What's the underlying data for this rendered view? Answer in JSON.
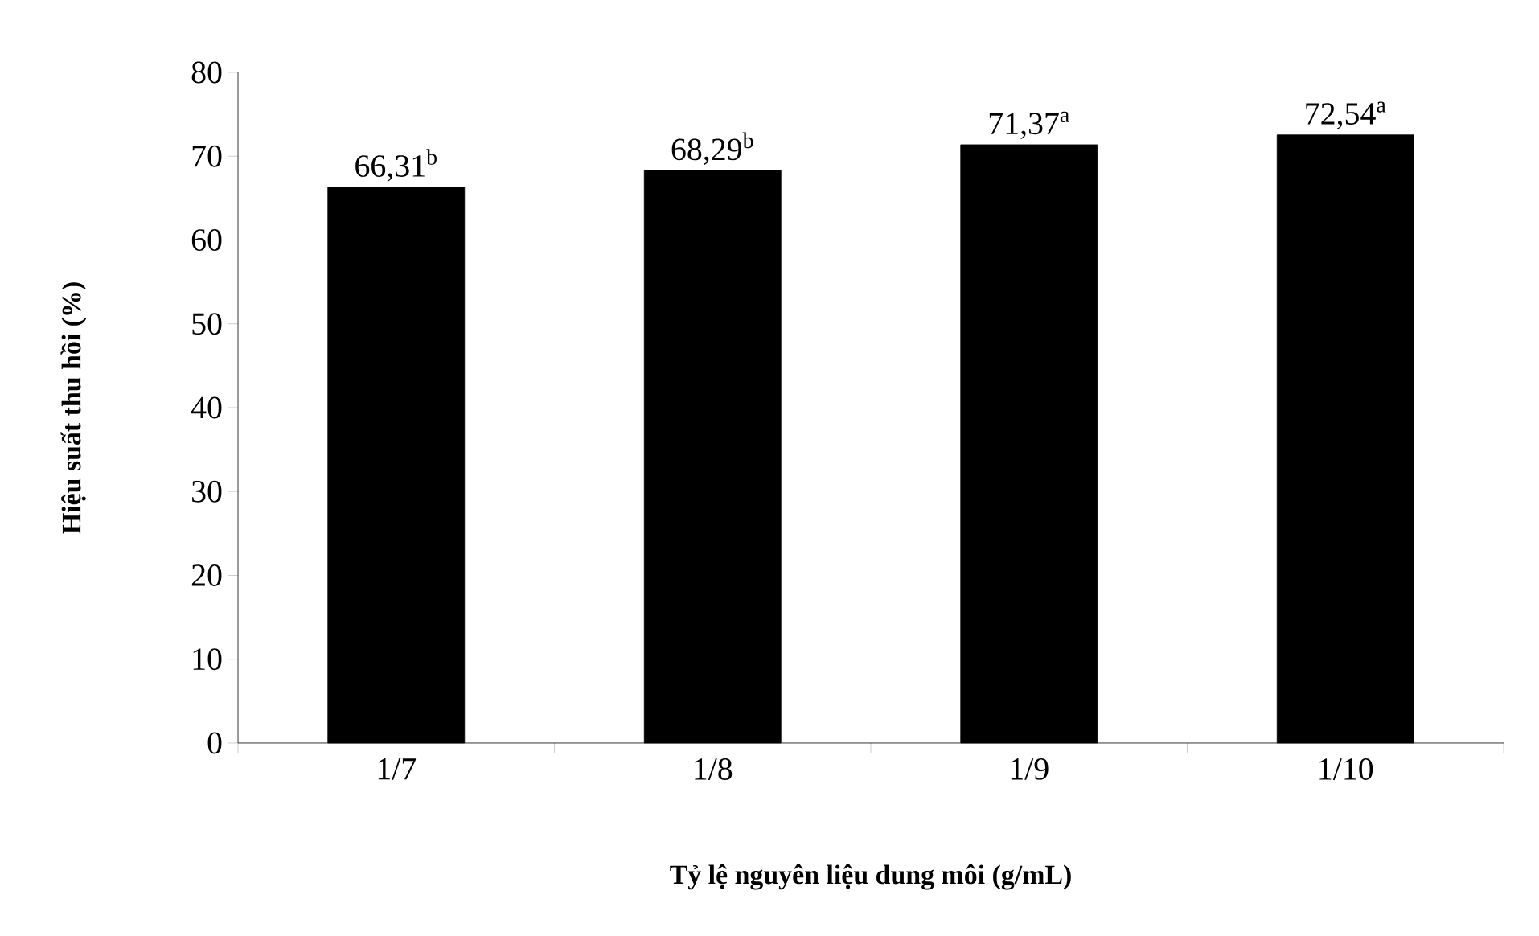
{
  "chart_data": {
    "type": "bar",
    "xlabel": "Tỷ lệ nguyên liệu dung môi (g/mL)",
    "ylabel": "Hiệu suất thu hồi (%)",
    "categories": [
      "1/7",
      "1/8",
      "1/9",
      "1/10"
    ],
    "values": [
      66.31,
      68.29,
      71.37,
      72.54
    ],
    "value_labels": [
      "66,31$^{b}$",
      "68,29$^{b}$",
      "71,37$^{a}$",
      "72,54$^{a}$"
    ],
    "color": "#000000",
    "ylim": [
      0,
      80
    ],
    "yticks": [
      0,
      10,
      20,
      30,
      40,
      50,
      60,
      70,
      80
    ],
    "grid": false
  }
}
